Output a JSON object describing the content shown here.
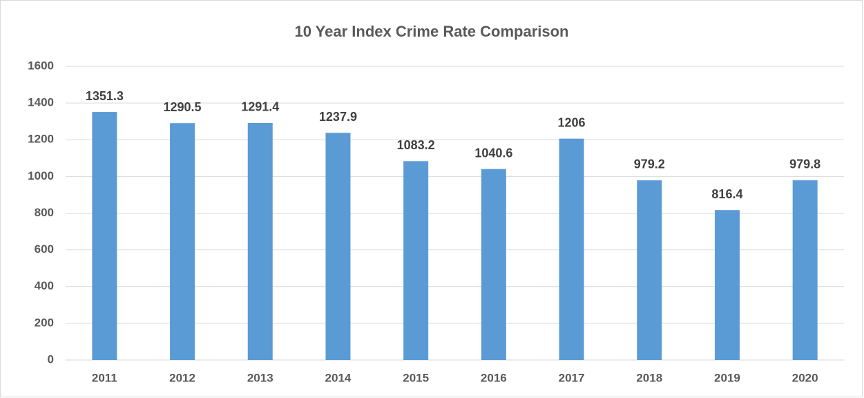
{
  "chart_data": {
    "type": "bar",
    "title": "10 Year Index Crime Rate Comparison",
    "categories": [
      "2011",
      "2012",
      "2013",
      "2014",
      "2015",
      "2016",
      "2017",
      "2018",
      "2019",
      "2020"
    ],
    "values": [
      1351.3,
      1290.5,
      1291.4,
      1237.9,
      1083.2,
      1040.6,
      1206,
      979.2,
      816.4,
      979.8
    ],
    "color": "#5b9bd5",
    "ylim": [
      0,
      1600
    ],
    "yticks": [
      0,
      200,
      400,
      600,
      800,
      1000,
      1200,
      1400,
      1600
    ],
    "grid": true
  }
}
